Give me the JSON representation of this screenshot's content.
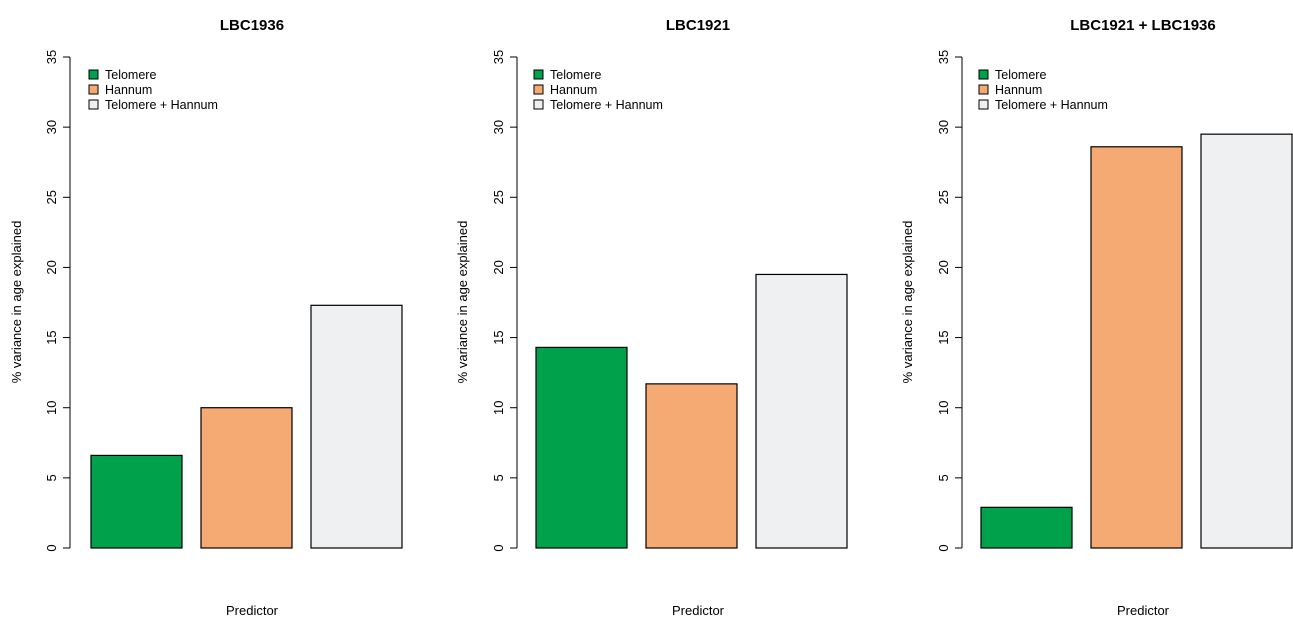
{
  "chart_data": [
    {
      "type": "bar",
      "title": "LBC1936",
      "xlabel": "Predictor",
      "ylabel": "% variance in age explained",
      "ylim": [
        0,
        35
      ],
      "yticks": [
        0,
        5,
        10,
        15,
        20,
        25,
        30,
        35
      ],
      "categories": [
        "Telomere",
        "Hannum",
        "Telomere + Hannum"
      ],
      "values": [
        6.6,
        10.0,
        17.3
      ],
      "colors": [
        "#00a14b",
        "#f4aa72",
        "#eef0f2"
      ],
      "legend": {
        "position": "top-left",
        "entries": [
          "Telomere",
          "Hannum",
          "Telomere + Hannum"
        ]
      },
      "grid": false
    },
    {
      "type": "bar",
      "title": "LBC1921",
      "xlabel": "Predictor",
      "ylabel": "% variance in age explained",
      "ylim": [
        0,
        35
      ],
      "yticks": [
        0,
        5,
        10,
        15,
        20,
        25,
        30,
        35
      ],
      "categories": [
        "Telomere",
        "Hannum",
        "Telomere + Hannum"
      ],
      "values": [
        14.3,
        11.7,
        19.5
      ],
      "colors": [
        "#00a14b",
        "#f4aa72",
        "#eef0f2"
      ],
      "legend": {
        "position": "top-left",
        "entries": [
          "Telomere",
          "Hannum",
          "Telomere + Hannum"
        ]
      },
      "grid": false
    },
    {
      "type": "bar",
      "title": "LBC1921 + LBC1936",
      "xlabel": "Predictor",
      "ylabel": "% variance in age explained",
      "ylim": [
        0,
        35
      ],
      "yticks": [
        0,
        5,
        10,
        15,
        20,
        25,
        30,
        35
      ],
      "categories": [
        "Telomere",
        "Hannum",
        "Telomere + Hannum"
      ],
      "values": [
        2.9,
        28.6,
        29.5
      ],
      "colors": [
        "#00a14b",
        "#f4aa72",
        "#eef0f2"
      ],
      "legend": {
        "position": "top-left",
        "entries": [
          "Telomere",
          "Hannum",
          "Telomere + Hannum"
        ]
      },
      "grid": false
    }
  ]
}
